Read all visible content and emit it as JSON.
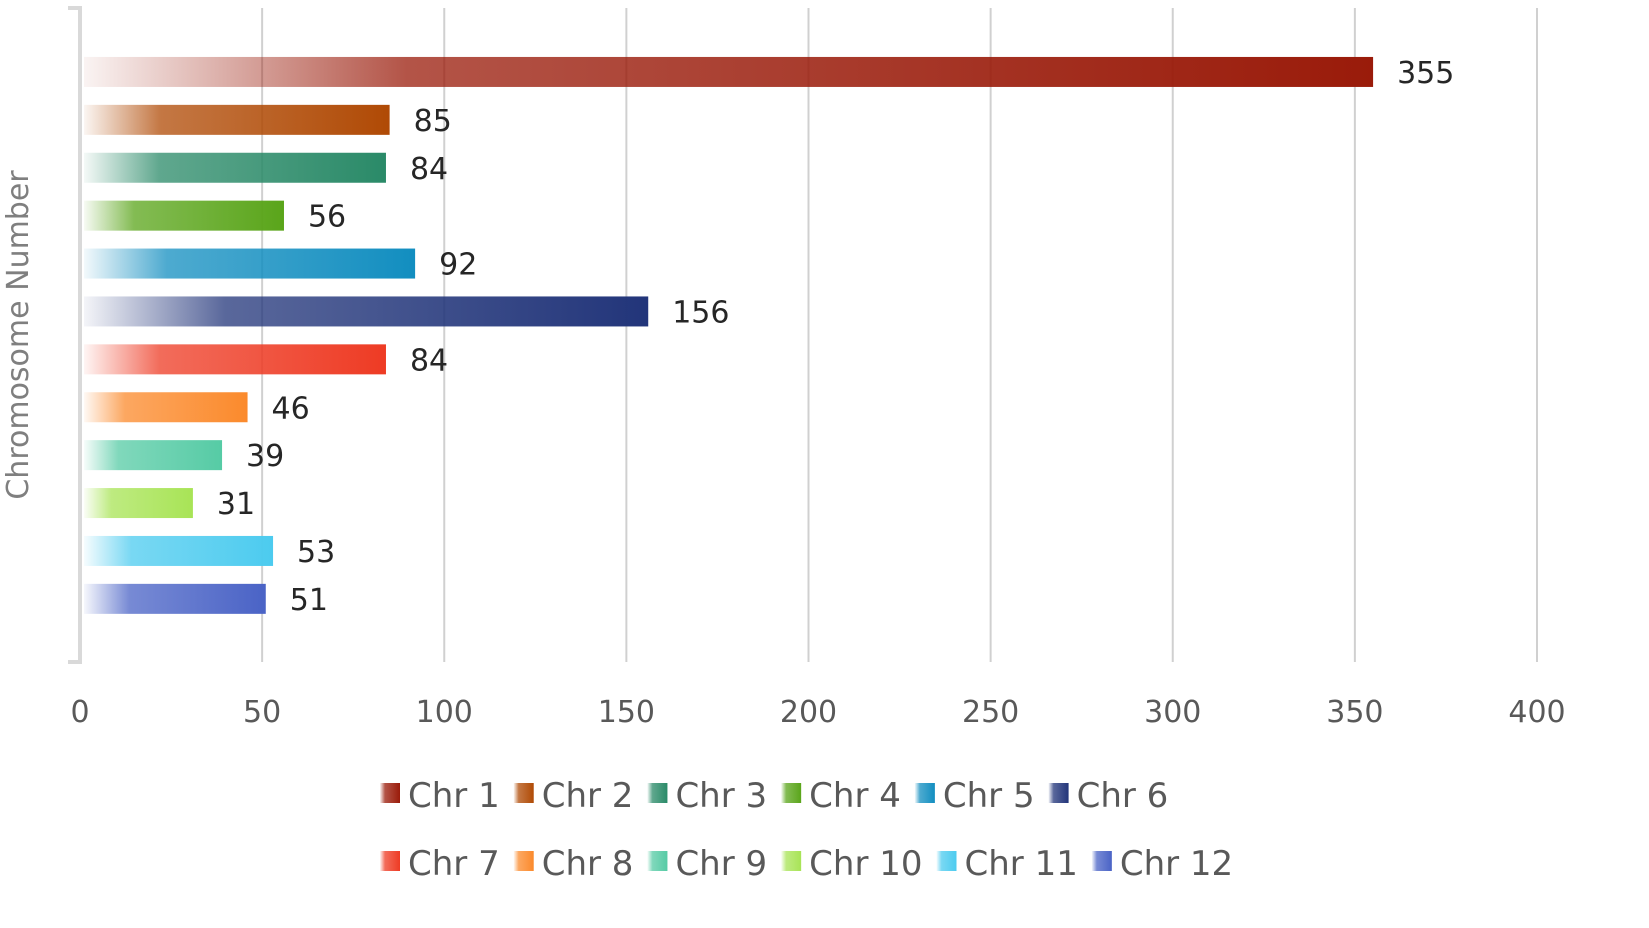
{
  "chart_data": {
    "type": "bar",
    "orientation": "horizontal",
    "ylabel": "Chromosome Number",
    "xlim": [
      0,
      400
    ],
    "x_ticks": [
      0,
      50,
      100,
      150,
      200,
      250,
      300,
      350,
      400
    ],
    "grid": "vertical",
    "legend_position": "bottom",
    "series": [
      {
        "name": "Chr 1",
        "value": 355,
        "color": "#9a1b0a"
      },
      {
        "name": "Chr 2",
        "value": 85,
        "color": "#b04a05"
      },
      {
        "name": "Chr 3",
        "value": 84,
        "color": "#2a8a68"
      },
      {
        "name": "Chr 4",
        "value": 56,
        "color": "#5aa51a"
      },
      {
        "name": "Chr 5",
        "value": 92,
        "color": "#128ec0"
      },
      {
        "name": "Chr 6",
        "value": 156,
        "color": "#22357a"
      },
      {
        "name": "Chr 7",
        "value": 84,
        "color": "#ee3b24"
      },
      {
        "name": "Chr 8",
        "value": 46,
        "color": "#fb8a2c"
      },
      {
        "name": "Chr 9",
        "value": 39,
        "color": "#56cba5"
      },
      {
        "name": "Chr 10",
        "value": 31,
        "color": "#a8e456"
      },
      {
        "name": "Chr 11",
        "value": 53,
        "color": "#4ccbef"
      },
      {
        "name": "Chr 12",
        "value": 51,
        "color": "#4a63c6"
      }
    ]
  }
}
